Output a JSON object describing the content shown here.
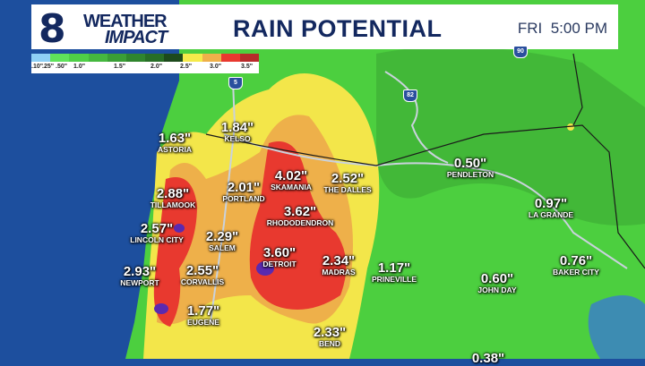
{
  "header": {
    "logo_number": "8",
    "logo_line1": "WEATHER",
    "logo_line2": "IMPACT",
    "title": "RAIN POTENTIAL",
    "day": "FRI",
    "time": "5:00 PM"
  },
  "legend": {
    "colors": [
      "#8fd0f5",
      "#5fe25a",
      "#4fcf47",
      "#45b83f",
      "#3a9e36",
      "#2f852d",
      "#276e26",
      "#1d4a1c",
      "#f5ea4a",
      "#eeb04a",
      "#e8392f",
      "#b72a2a"
    ],
    "labels": [
      ".10\"",
      ".25\"",
      ".50\"",
      "1.0\"",
      "1.5\"",
      "2.0\"",
      "2.5\"",
      "3.0\"",
      "3.5\""
    ]
  },
  "shields": [
    "5",
    "82",
    "90"
  ],
  "cities": [
    {
      "value": "1.63\"",
      "name": "ASTORIA"
    },
    {
      "value": "1.84\"",
      "name": "KELSO"
    },
    {
      "value": "2.88\"",
      "name": "TILLAMOOK"
    },
    {
      "value": "2.01\"",
      "name": "PORTLAND"
    },
    {
      "value": "4.02\"",
      "name": "SKAMANIA"
    },
    {
      "value": "2.52\"",
      "name": "THE DALLES"
    },
    {
      "value": "0.50\"",
      "name": "PENDLETON"
    },
    {
      "value": "0.97\"",
      "name": "LA GRANDE"
    },
    {
      "value": "2.57\"",
      "name": "LINCOLN CITY"
    },
    {
      "value": "3.62\"",
      "name": "RHODODENDRON"
    },
    {
      "value": "2.29\"",
      "name": "SALEM"
    },
    {
      "value": "3.60\"",
      "name": "DETROIT"
    },
    {
      "value": "2.34\"",
      "name": "MADRAS"
    },
    {
      "value": "1.17\"",
      "name": "PRINEVILLE"
    },
    {
      "value": "0.76\"",
      "name": "BAKER CITY"
    },
    {
      "value": "2.93\"",
      "name": "NEWPORT"
    },
    {
      "value": "2.55\"",
      "name": "CORVALLIS"
    },
    {
      "value": "0.60\"",
      "name": "JOHN DAY"
    },
    {
      "value": "1.77\"",
      "name": "EUGENE"
    },
    {
      "value": "2.33\"",
      "name": "BEND"
    },
    {
      "value": "0.38\"",
      "name": ""
    }
  ]
}
